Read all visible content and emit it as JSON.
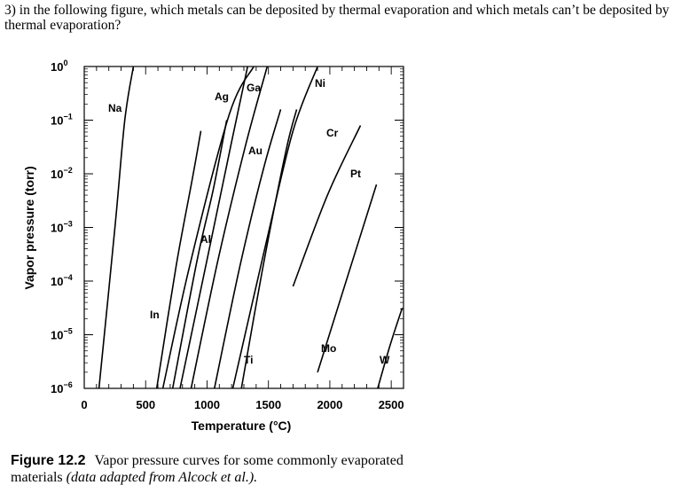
{
  "question": "3) in the following figure, which metals can be deposited by thermal evaporation and which metals can’t be deposited by thermal evaporation?",
  "caption": {
    "label": "Figure 12.2",
    "text": "Vapor pressure curves for some commonly evaporated materials",
    "note": "(data adapted from Alcock et al.)."
  },
  "chart_data": {
    "type": "line",
    "title": "",
    "xlabel": "Temperature (°C)",
    "ylabel": "Vapor pressure (torr)",
    "xlim": [
      0,
      2600
    ],
    "ylim_exponent": [
      -6,
      0
    ],
    "yscale": "log",
    "x_ticks": [
      "0",
      "500",
      "1000",
      "1500",
      "2000",
      "2500"
    ],
    "x_tick_values": [
      0,
      500,
      1000,
      1500,
      2000,
      2500
    ],
    "y_ticks": [
      {
        "base": "10",
        "exp": "0"
      },
      {
        "base": "10",
        "exp": "−1"
      },
      {
        "base": "10",
        "exp": "−2"
      },
      {
        "base": "10",
        "exp": "−3"
      },
      {
        "base": "10",
        "exp": "−4"
      },
      {
        "base": "10",
        "exp": "−5"
      },
      {
        "base": "10",
        "exp": "−6"
      }
    ],
    "grid": false,
    "series": [
      {
        "name": "Na",
        "points": [
          [
            120,
            -6.0
          ],
          [
            250,
            -3.0
          ],
          [
            330,
            -1.0
          ],
          [
            400,
            0.0
          ]
        ]
      },
      {
        "name": "In",
        "points": [
          [
            590,
            -6.0
          ],
          [
            750,
            -3.7
          ],
          [
            880,
            -2.1
          ],
          [
            950,
            -1.2
          ]
        ]
      },
      {
        "name": "Al",
        "points": [
          [
            720,
            -6.0
          ],
          [
            920,
            -3.6
          ],
          [
            1050,
            -2.3
          ],
          [
            1160,
            -1.0
          ]
        ]
      },
      {
        "name": "Ga",
        "points": [
          [
            640,
            -6.0
          ],
          [
            860,
            -3.7
          ],
          [
            1180,
            -0.9
          ],
          [
            1380,
            0.0
          ]
        ]
      },
      {
        "name": "Ag",
        "points": [
          [
            780,
            -6.0
          ],
          [
            1000,
            -3.6
          ],
          [
            1200,
            -1.4
          ],
          [
            1330,
            0.0
          ]
        ]
      },
      {
        "name": "Au",
        "points": [
          [
            870,
            -6.0
          ],
          [
            1090,
            -3.6
          ],
          [
            1310,
            -1.5
          ],
          [
            1490,
            0.0
          ]
        ]
      },
      {
        "name": "Ti",
        "points": [
          [
            1280,
            -6.0
          ],
          [
            1450,
            -3.8
          ],
          [
            1640,
            -1.6
          ],
          [
            1730,
            -0.8
          ]
        ]
      },
      {
        "name": "Ni",
        "points": [
          [
            1210,
            -6.0
          ],
          [
            1480,
            -3.3
          ],
          [
            1700,
            -1.2
          ],
          [
            1900,
            0.0
          ]
        ]
      },
      {
        "name": "Cr",
        "points": [
          [
            1060,
            -6.0
          ],
          [
            1270,
            -3.7
          ],
          [
            1460,
            -1.9
          ],
          [
            1600,
            -0.8
          ]
        ]
      },
      {
        "name": "Pt",
        "points": [
          [
            1700,
            -4.1
          ],
          [
            1980,
            -2.4
          ],
          [
            2250,
            -1.1
          ]
        ]
      },
      {
        "name": "Mo",
        "points": [
          [
            1900,
            -5.7
          ],
          [
            2160,
            -3.8
          ],
          [
            2380,
            -2.2
          ]
        ]
      },
      {
        "name": "W",
        "points": [
          [
            2390,
            -6.0
          ],
          [
            2490,
            -5.2
          ],
          [
            2590,
            -4.5
          ]
        ]
      }
    ]
  }
}
